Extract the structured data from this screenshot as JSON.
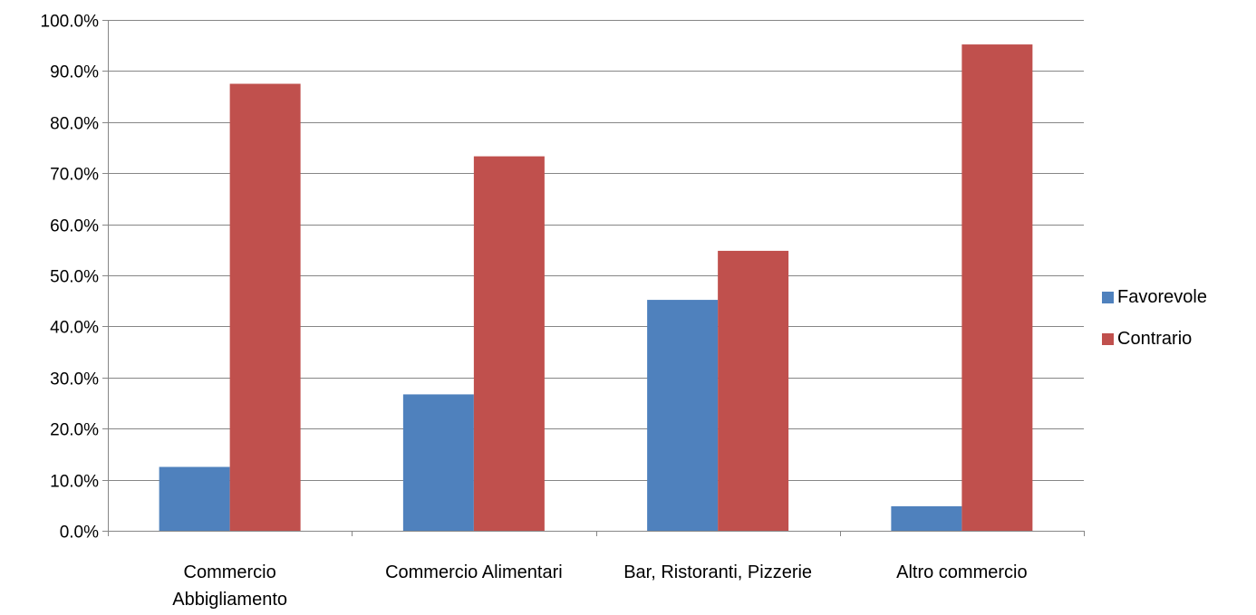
{
  "chart_data": {
    "type": "bar",
    "title": "",
    "xlabel": "",
    "ylabel": "",
    "categories": [
      [
        "Commercio",
        "Abbigliamento"
      ],
      [
        "Commercio Alimentari"
      ],
      [
        "Bar, Ristoranti, Pizzerie"
      ],
      [
        "Altro commercio"
      ]
    ],
    "series": [
      {
        "name": "Favorevole",
        "color": "#4F81BD",
        "values": [
          12.5,
          26.7,
          45.2,
          4.8
        ]
      },
      {
        "name": "Contrario",
        "color": "#C0504D",
        "values": [
          87.5,
          73.3,
          54.8,
          95.2
        ]
      }
    ],
    "ylim": [
      0,
      100
    ],
    "yticks": [
      "0.0%",
      "10.0%",
      "20.0%",
      "30.0%",
      "40.0%",
      "50.0%",
      "60.0%",
      "70.0%",
      "80.0%",
      "90.0%",
      "100.0%"
    ],
    "grid": true,
    "legend": "right"
  }
}
